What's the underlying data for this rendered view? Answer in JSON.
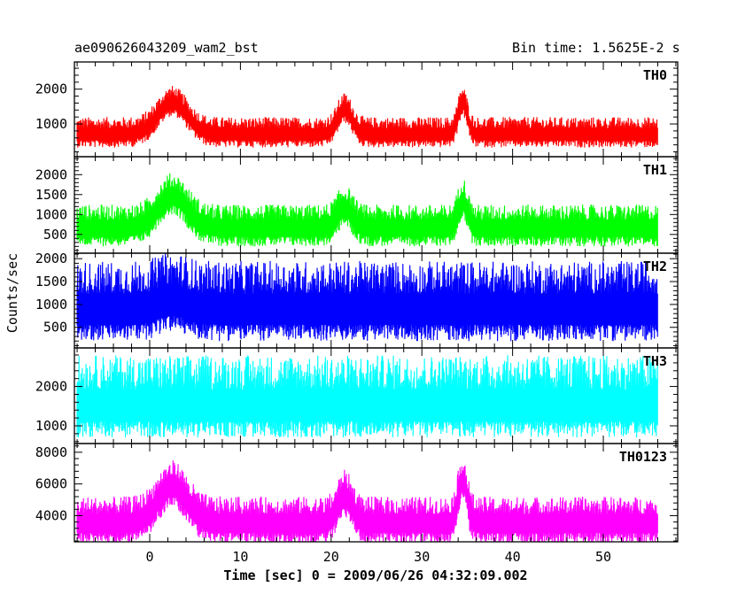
{
  "chart_data": {
    "type": "line",
    "title_left": "ae090626043209_wam2_bst",
    "title_right": "Bin time: 1.5625E-2 s",
    "ylabel": "Counts/sec",
    "xlabel": "Time [sec] 0 = 2009/06/26 04:32:09.002",
    "xlim": [
      -8.3,
      58.2
    ],
    "x_range": [
      -8.0,
      56.0
    ],
    "x_ticks": [
      0,
      10,
      20,
      30,
      40,
      50
    ],
    "x_tick_labels": [
      "0",
      "10",
      "20",
      "30",
      "40",
      "50"
    ],
    "panels": [
      {
        "name": "TH0",
        "color": "#ff0000",
        "ylim": [
          60,
          2780
        ],
        "y_ticks": [
          1000,
          2000
        ],
        "y_tick_labels": [
          "1000",
          "2000"
        ],
        "baseline": 700,
        "noise_high": 500,
        "noise_low": 380,
        "bursts": [
          {
            "t": 2.5,
            "width": 1.6,
            "amp": 900
          },
          {
            "t": 21.5,
            "width": 0.8,
            "amp": 700
          },
          {
            "t": 34.5,
            "width": 0.5,
            "amp": 900
          }
        ]
      },
      {
        "name": "TH1",
        "color": "#00ff00",
        "ylim": [
          30,
          2450
        ],
        "y_ticks": [
          500,
          1000,
          1500,
          2000
        ],
        "y_tick_labels": [
          "500",
          "1000",
          "1500",
          "2000"
        ],
        "baseline": 650,
        "noise_high": 600,
        "noise_low": 450,
        "bursts": [
          {
            "t": 2.5,
            "width": 1.6,
            "amp": 800
          },
          {
            "t": 21.5,
            "width": 0.8,
            "amp": 500
          },
          {
            "t": 34.5,
            "width": 0.5,
            "amp": 700
          }
        ]
      },
      {
        "name": "TH2",
        "color": "#0000ff",
        "ylim": [
          50,
          2120
        ],
        "y_ticks": [
          500,
          1000,
          1500,
          2000
        ],
        "y_tick_labels": [
          "500",
          "1000",
          "1500",
          "2000"
        ],
        "baseline": 850,
        "noise_high": 1100,
        "noise_low": 650,
        "bursts": [
          {
            "t": 2.5,
            "width": 1.5,
            "amp": 200
          }
        ]
      },
      {
        "name": "TH3",
        "color": "#00ffff",
        "ylim": [
          550,
          2980
        ],
        "y_ticks": [
          1000,
          2000
        ],
        "y_tick_labels": [
          "1000",
          "2000"
        ],
        "baseline": 1450,
        "noise_high": 1350,
        "noise_low": 750,
        "bursts": []
      },
      {
        "name": "TH0123",
        "color": "#ff00ff",
        "ylim": [
          2350,
          8550
        ],
        "y_ticks": [
          4000,
          6000,
          8000
        ],
        "y_tick_labels": [
          "4000",
          "6000",
          "8000"
        ],
        "baseline": 3500,
        "noise_high": 1700,
        "noise_low": 1300,
        "bursts": [
          {
            "t": 2.5,
            "width": 1.6,
            "amp": 2300
          },
          {
            "t": 21.5,
            "width": 0.8,
            "amp": 1700
          },
          {
            "t": 34.5,
            "width": 0.5,
            "amp": 2700
          }
        ]
      }
    ]
  }
}
